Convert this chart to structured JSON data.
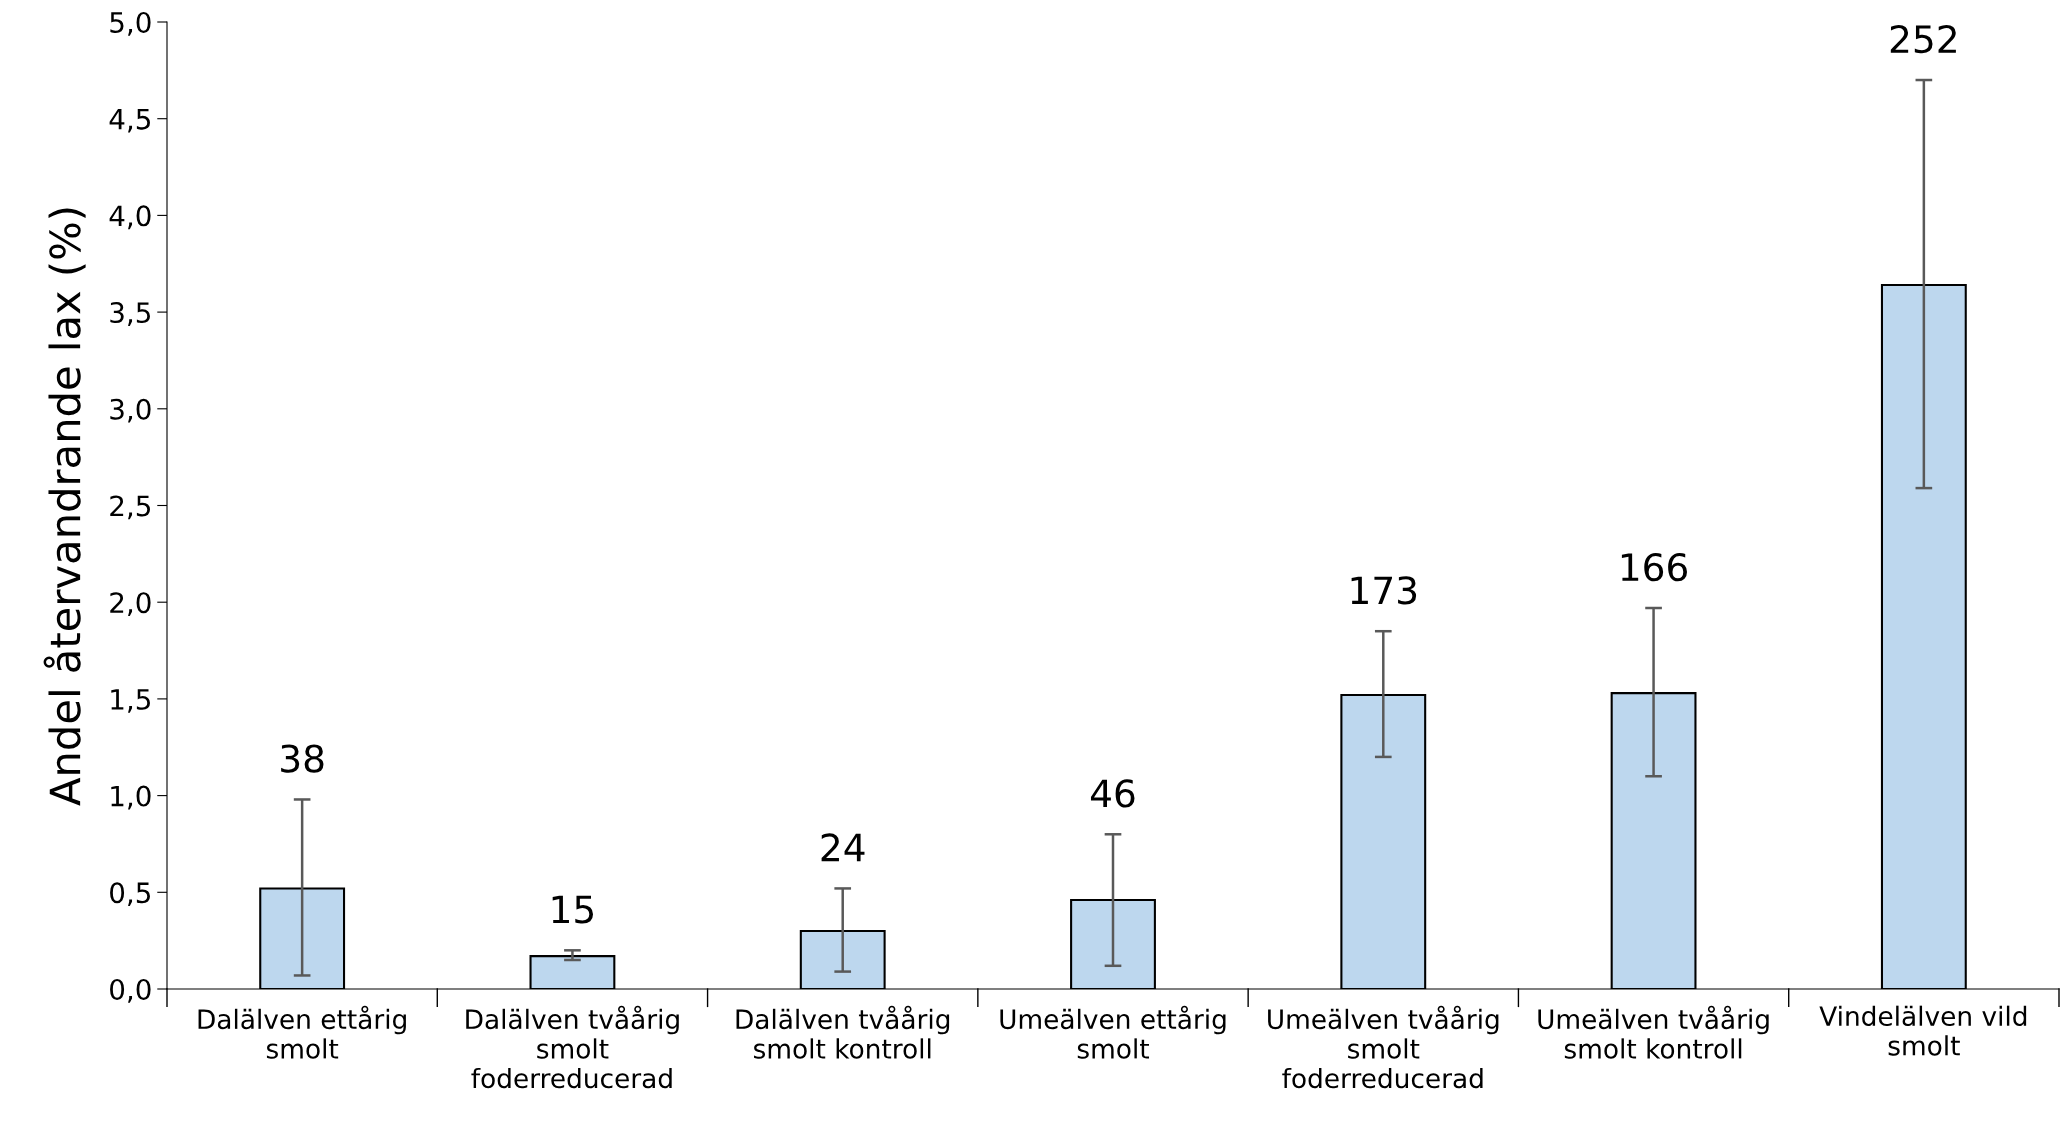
{
  "chart_data": {
    "type": "bar",
    "ylabel": "Andel återvandrande lax (%)",
    "categories": [
      "Dalälven ettårig\nsmolt",
      "Dalälven tvåårig\nsmolt\nfoderreducerad",
      "Dalälven tvåårig\nsmolt kontroll",
      "Umeälven ettårig\nsmolt",
      "Umeälven tvåårig\nsmolt\nfoderreducerad",
      "Umeälven tvåårig\nsmolt kontroll",
      "Vindelälven vild\nsmolt"
    ],
    "values": [
      0.52,
      0.17,
      0.3,
      0.46,
      1.52,
      1.53,
      3.64
    ],
    "errors": [
      [
        0.07,
        0.98
      ],
      [
        0.15,
        0.2
      ],
      [
        0.09,
        0.52
      ],
      [
        0.12,
        0.8
      ],
      [
        1.2,
        1.85
      ],
      [
        1.1,
        1.97
      ],
      [
        2.59,
        4.7
      ]
    ],
    "color": "#bdd7ee",
    "ylim": [
      0,
      5
    ],
    "yticks": [
      {
        "value": 0,
        "label": "0,0"
      },
      {
        "value": 0.5,
        "label": "0,5"
      },
      {
        "value": 1,
        "label": "1,0"
      },
      {
        "value": 1.5,
        "label": "1,5"
      },
      {
        "value": 2,
        "label": "2,0"
      },
      {
        "value": 2.5,
        "label": "2,5"
      },
      {
        "value": 3,
        "label": "3,0"
      },
      {
        "value": 3.5,
        "label": "3,5"
      },
      {
        "value": 4,
        "label": "4,0"
      },
      {
        "value": 4.5,
        "label": "4,5"
      },
      {
        "value": 5,
        "label": "5,0"
      }
    ],
    "annotations": [
      "38",
      "15",
      "24",
      "46",
      "173",
      "166",
      "252"
    ],
    "grid": false,
    "legend": false
  }
}
